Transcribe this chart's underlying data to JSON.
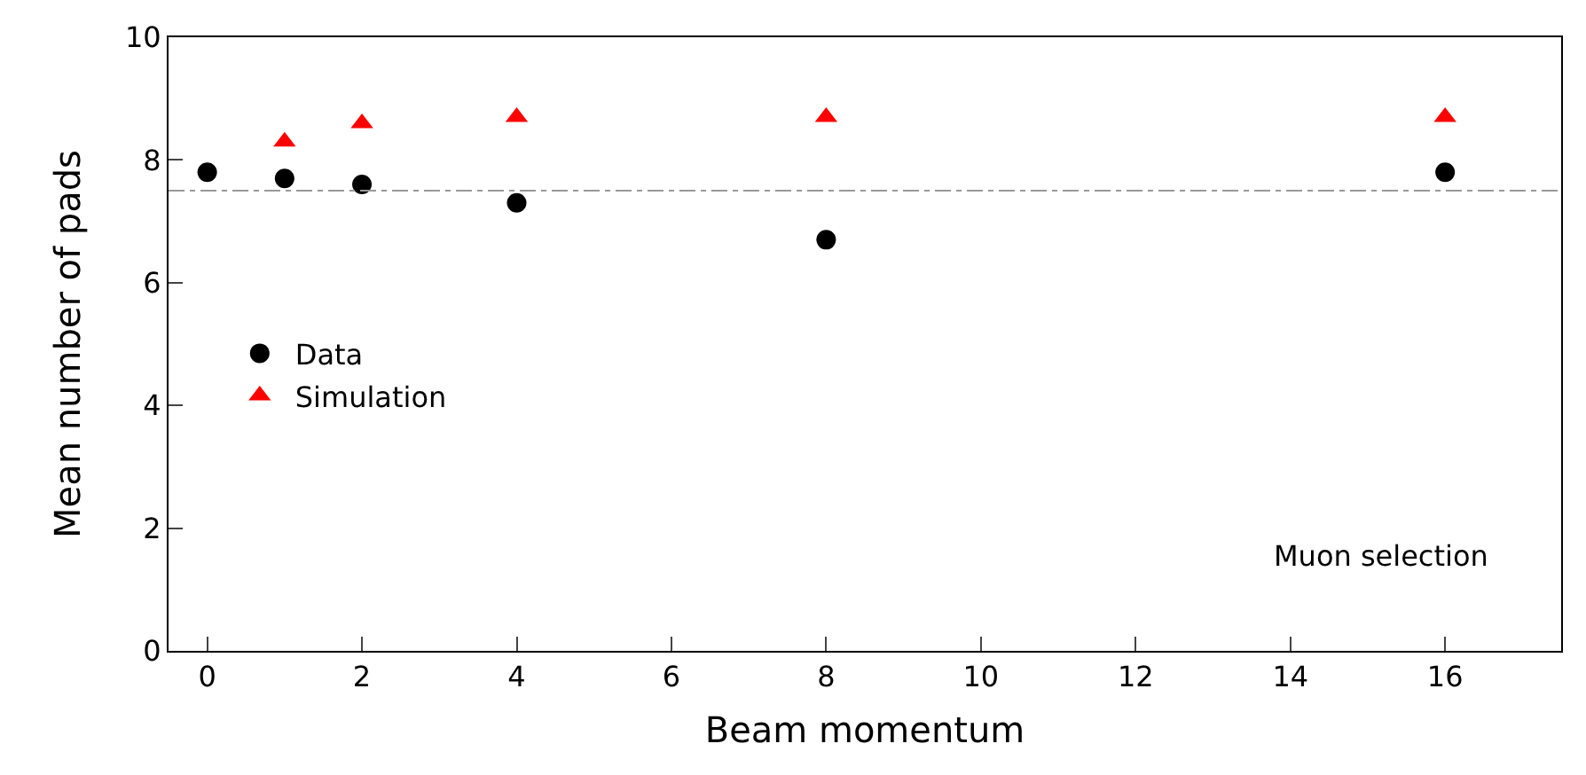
{
  "chart_data": {
    "type": "scatter",
    "xlabel": "Beam momentum",
    "ylabel": "Mean number of pads",
    "xlim": [
      -0.5,
      17.5
    ],
    "ylim": [
      0,
      10
    ],
    "xticks": [
      0,
      2,
      4,
      6,
      8,
      10,
      12,
      14,
      16
    ],
    "yticks": [
      0,
      2,
      4,
      6,
      8,
      10
    ],
    "x": [
      0,
      1,
      2,
      4,
      8,
      16
    ],
    "series": [
      {
        "name": "Data",
        "color": "#000000",
        "marker": "circle",
        "values": [
          7.8,
          7.7,
          7.6,
          7.3,
          6.7,
          7.8
        ]
      },
      {
        "name": "Simulation",
        "color": "#ff0000",
        "marker": "triangle",
        "x": [
          1,
          2,
          4,
          8,
          16
        ],
        "values": [
          8.3,
          8.6,
          8.7,
          8.7,
          8.7
        ]
      }
    ],
    "ref_lines": [
      {
        "axis": "y",
        "value": 7.5,
        "color": "#999999",
        "line_style": "dashdot"
      }
    ],
    "annotations": [
      "Muon selection"
    ],
    "grid": false,
    "legend": "center left"
  }
}
